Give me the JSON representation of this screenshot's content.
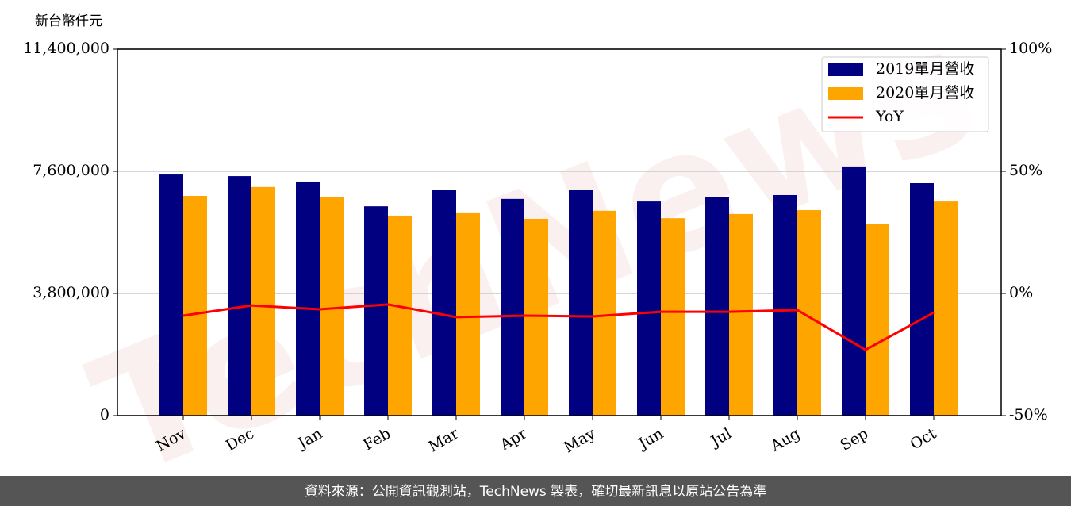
{
  "chart_data": {
    "type": "bar",
    "unit_label": "新台幣仟元",
    "watermark": "TechNews",
    "footer": "資料來源：公開資訊觀測站，TechNews 製表，確切最新訊息以原站公告為準",
    "categories": [
      "Nov",
      "Dec",
      "Jan",
      "Feb",
      "Mar",
      "Apr",
      "May",
      "Jun",
      "Jul",
      "Aug",
      "Sep",
      "Oct"
    ],
    "series": [
      {
        "name": "2019單月營收",
        "color": "#000080",
        "values": [
          7500000,
          7450000,
          7280000,
          6510000,
          7010000,
          6740000,
          7010000,
          6660000,
          6790000,
          6860000,
          7750000,
          7230000
        ]
      },
      {
        "name": "2020單月營收",
        "color": "#ffa500",
        "values": [
          6835000,
          7110000,
          6810000,
          6220000,
          6320000,
          6120000,
          6370000,
          6140000,
          6270000,
          6390000,
          5950000,
          6660000
        ]
      },
      {
        "name": "YoY",
        "color": "#ff0000",
        "type": "line",
        "axis": "y2",
        "values": [
          -9.1,
          -4.9,
          -6.5,
          -4.5,
          -9.7,
          -9.1,
          -9.4,
          -7.5,
          -7.5,
          -6.8,
          -23.1,
          -7.8
        ]
      }
    ],
    "ylim": [
      0,
      11400000
    ],
    "yticks": [
      0,
      {
        "value": 3800000,
        "label": "3,800,000"
      },
      {
        "value": 7600000,
        "label": "7,600,000"
      },
      {
        "value": 11400000,
        "label": "11,400,000"
      }
    ],
    "y2lim": [
      -50,
      100
    ],
    "y2ticks": [
      {
        "value": -50,
        "label": "-50%"
      },
      {
        "value": 0,
        "label": "0%"
      },
      {
        "value": 50,
        "label": "50%"
      },
      {
        "value": 100,
        "label": "100%"
      }
    ],
    "grid": true,
    "legend": "upper right"
  }
}
